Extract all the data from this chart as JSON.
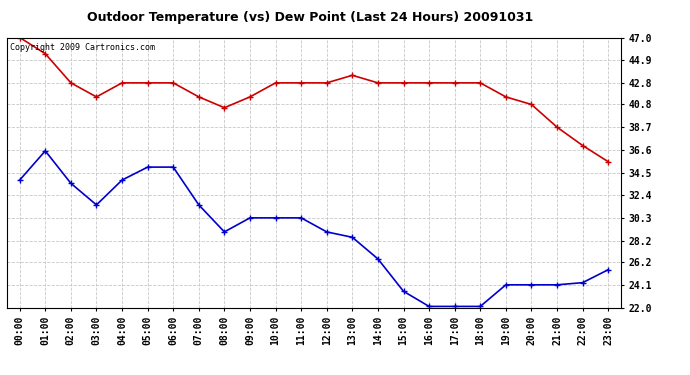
{
  "title": "Outdoor Temperature (vs) Dew Point (Last 24 Hours) 20091031",
  "copyright_text": "Copyright 2009 Cartronics.com",
  "x_labels": [
    "00:00",
    "01:00",
    "02:00",
    "03:00",
    "04:00",
    "05:00",
    "06:00",
    "07:00",
    "08:00",
    "09:00",
    "10:00",
    "11:00",
    "12:00",
    "13:00",
    "14:00",
    "15:00",
    "16:00",
    "17:00",
    "18:00",
    "19:00",
    "20:00",
    "21:00",
    "22:00",
    "23:00"
  ],
  "temp_data": [
    47.0,
    45.5,
    42.8,
    41.5,
    42.8,
    42.8,
    42.8,
    41.5,
    40.5,
    41.5,
    42.8,
    42.8,
    42.8,
    43.5,
    42.8,
    42.8,
    42.8,
    42.8,
    42.8,
    41.5,
    40.8,
    38.7,
    37.0,
    35.5
  ],
  "dew_data": [
    33.8,
    36.5,
    33.5,
    31.5,
    33.8,
    35.0,
    35.0,
    31.5,
    29.0,
    30.3,
    30.3,
    30.3,
    29.0,
    28.5,
    26.5,
    23.5,
    22.1,
    22.1,
    22.1,
    24.1,
    24.1,
    24.1,
    24.3,
    25.5
  ],
  "temp_color": "#cc0000",
  "dew_color": "#0000cc",
  "bg_color": "#ffffff",
  "grid_color": "#c8c8c8",
  "ylim_min": 22.0,
  "ylim_max": 47.0,
  "yticks": [
    22.0,
    24.1,
    26.2,
    28.2,
    30.3,
    32.4,
    34.5,
    36.6,
    38.7,
    40.8,
    42.8,
    44.9,
    47.0
  ],
  "marker": "+",
  "marker_size": 4,
  "line_width": 1.2,
  "title_fontsize": 9,
  "tick_fontsize": 7,
  "copyright_fontsize": 6
}
